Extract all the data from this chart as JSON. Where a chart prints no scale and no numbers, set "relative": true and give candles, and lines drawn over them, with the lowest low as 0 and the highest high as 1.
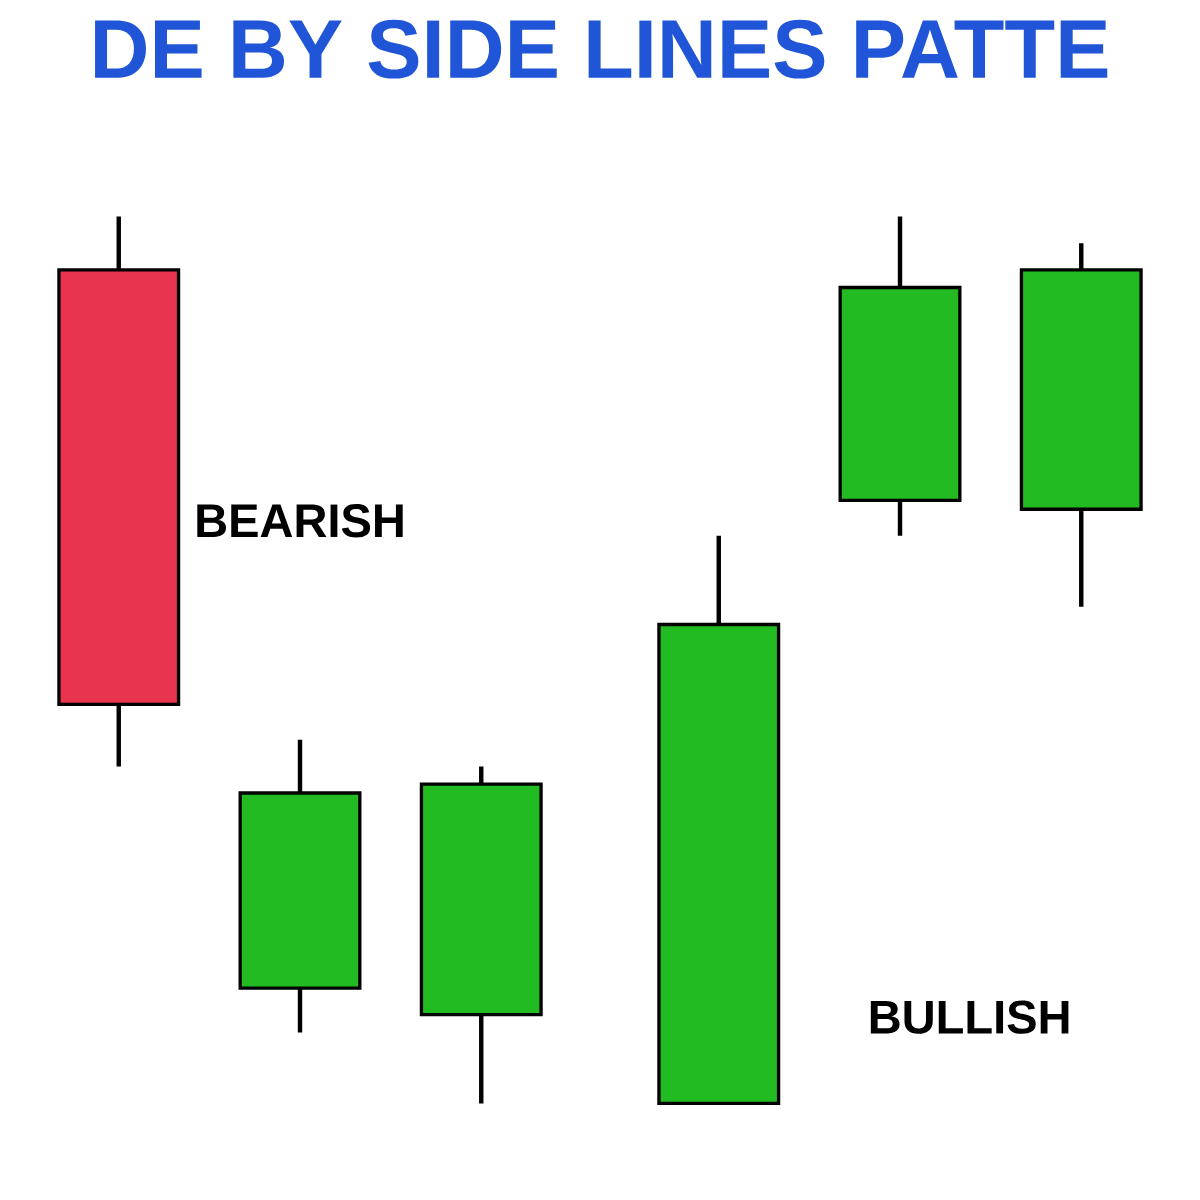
{
  "chart_data": [
    {
      "type": "candlestick",
      "title": "DE BY SIDE LINES PATTE",
      "relative": true,
      "categories": [
        null,
        null,
        null
      ],
      "ohlc": [
        [
          0.94,
          1.0,
          0.38,
          0.45
        ],
        [
          0.13,
          0.41,
          0.08,
          0.35
        ],
        [
          0.1,
          0.38,
          0.0,
          0.36
        ]
      ],
      "colors": [
        "#e8344e",
        "#22bb22",
        "#22bb22"
      ],
      "annotations": [
        "BEARISH"
      ]
    },
    {
      "type": "candlestick",
      "relative": true,
      "categories": [
        null,
        null,
        null
      ],
      "ohlc": [
        [
          0.0,
          0.64,
          0.0,
          0.54
        ],
        [
          0.68,
          1.0,
          0.64,
          0.92
        ],
        [
          0.67,
          0.97,
          0.56,
          0.94
        ]
      ],
      "colors": [
        "#22bb22",
        "#22bb22",
        "#22bb22"
      ],
      "annotations": [
        "BULLISH"
      ]
    }
  ]
}
